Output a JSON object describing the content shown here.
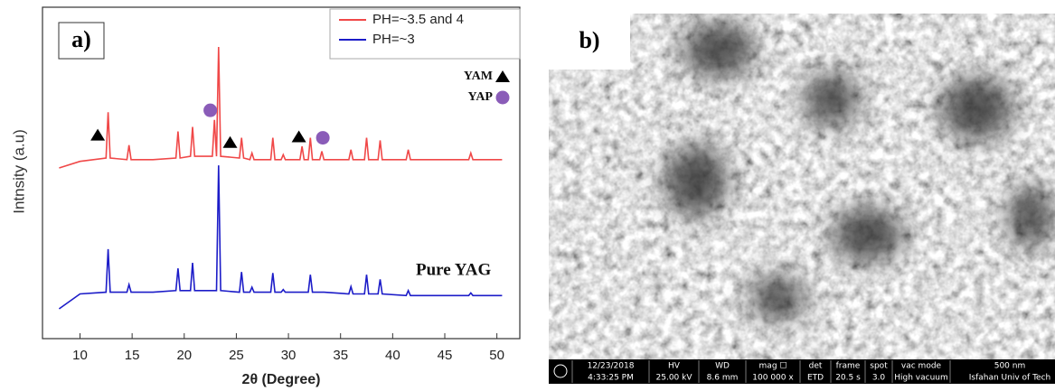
{
  "chart_data": {
    "type": "line",
    "panel_label": "a)",
    "y_label": "Intnsity (a.u)",
    "x_label": "2θ (Degree)",
    "annotation": "Pure YAG",
    "xlim": [
      6.4,
      52.2
    ],
    "ylim": [
      0,
      100
    ],
    "xticks": [
      10,
      15,
      20,
      25,
      30,
      35,
      40,
      45,
      50
    ],
    "legend": "upper right",
    "x": [
      8,
      10,
      12.5,
      12.7,
      12.9,
      14.5,
      14.7,
      14.9,
      17,
      19.2,
      19.4,
      19.6,
      20.6,
      20.8,
      21.0,
      22.7,
      22.9,
      23.1,
      23.3,
      23.5,
      25.3,
      25.5,
      25.7,
      26.3,
      26.5,
      26.7,
      28.3,
      28.5,
      28.7,
      29.3,
      29.5,
      29.7,
      31.1,
      31.3,
      31.5,
      31.9,
      32.1,
      32.3,
      33.0,
      33.2,
      33.4,
      35.8,
      36.0,
      36.2,
      37.3,
      37.5,
      37.7,
      38.6,
      38.8,
      39.0,
      41.3,
      41.5,
      41.7,
      47.3,
      47.5,
      47.7,
      50.5
    ],
    "series": [
      {
        "name": "PH=~3.5 and 4",
        "color": "#f04848",
        "values": [
          51.5,
          53.5,
          54.5,
          68.3,
          54.5,
          54,
          58.4,
          54,
          54,
          54.5,
          62.5,
          54.5,
          55,
          63.9,
          55,
          55,
          66,
          55,
          88,
          55,
          54.5,
          60.6,
          54.5,
          54,
          56,
          54,
          54,
          60.6,
          54,
          54,
          55.5,
          54,
          54,
          58,
          54,
          54,
          60.6,
          54,
          54,
          56.5,
          54,
          54,
          57,
          54,
          54,
          60.6,
          54,
          54,
          59.8,
          54,
          54,
          57,
          54,
          54,
          56,
          54,
          54
        ]
      },
      {
        "name": "PH=~3",
        "color": "#1c1cc8",
        "values": [
          9,
          13.5,
          14,
          27,
          14,
          14,
          16.3,
          14,
          14,
          14.5,
          21.2,
          14.5,
          14.5,
          22.9,
          14.5,
          14.5,
          14.5,
          14.5,
          52.3,
          14.5,
          14,
          20.1,
          14,
          14,
          15.5,
          14,
          14,
          19.8,
          14,
          14,
          14.8,
          14,
          14,
          14,
          14,
          14,
          19.3,
          14,
          14,
          14,
          14,
          13.5,
          15.7,
          13.5,
          13.5,
          19.3,
          13.5,
          13.5,
          17.9,
          13.5,
          13,
          14.5,
          13,
          13,
          13.8,
          13,
          13
        ]
      }
    ],
    "phase_markers": [
      {
        "label": "YAM",
        "shape": "triangle",
        "color": "#000000",
        "x": [
          11.7,
          24.4,
          31.0
        ],
        "y": [
          61.4,
          59.2,
          60.9
        ]
      },
      {
        "label": "YAP",
        "shape": "circle",
        "color": "#8a5cb8",
        "x": [
          22.5,
          33.3
        ],
        "y": [
          68.9,
          60.6
        ]
      }
    ]
  },
  "sem_panel": {
    "panel_label": "b)",
    "info": [
      [
        "12/23/2018",
        "4:33:25 PM"
      ],
      [
        "HV",
        "25.00 kV"
      ],
      [
        "WD",
        "8.6 mm"
      ],
      [
        "mag ☐",
        "100 000 x"
      ],
      [
        "det",
        "ETD"
      ],
      [
        "frame",
        "20.5 s"
      ],
      [
        "spot",
        "3.0"
      ],
      [
        "vac mode",
        "High vacuum"
      ],
      [
        "500 nm",
        "Isfahan Univ of Tech"
      ]
    ]
  }
}
